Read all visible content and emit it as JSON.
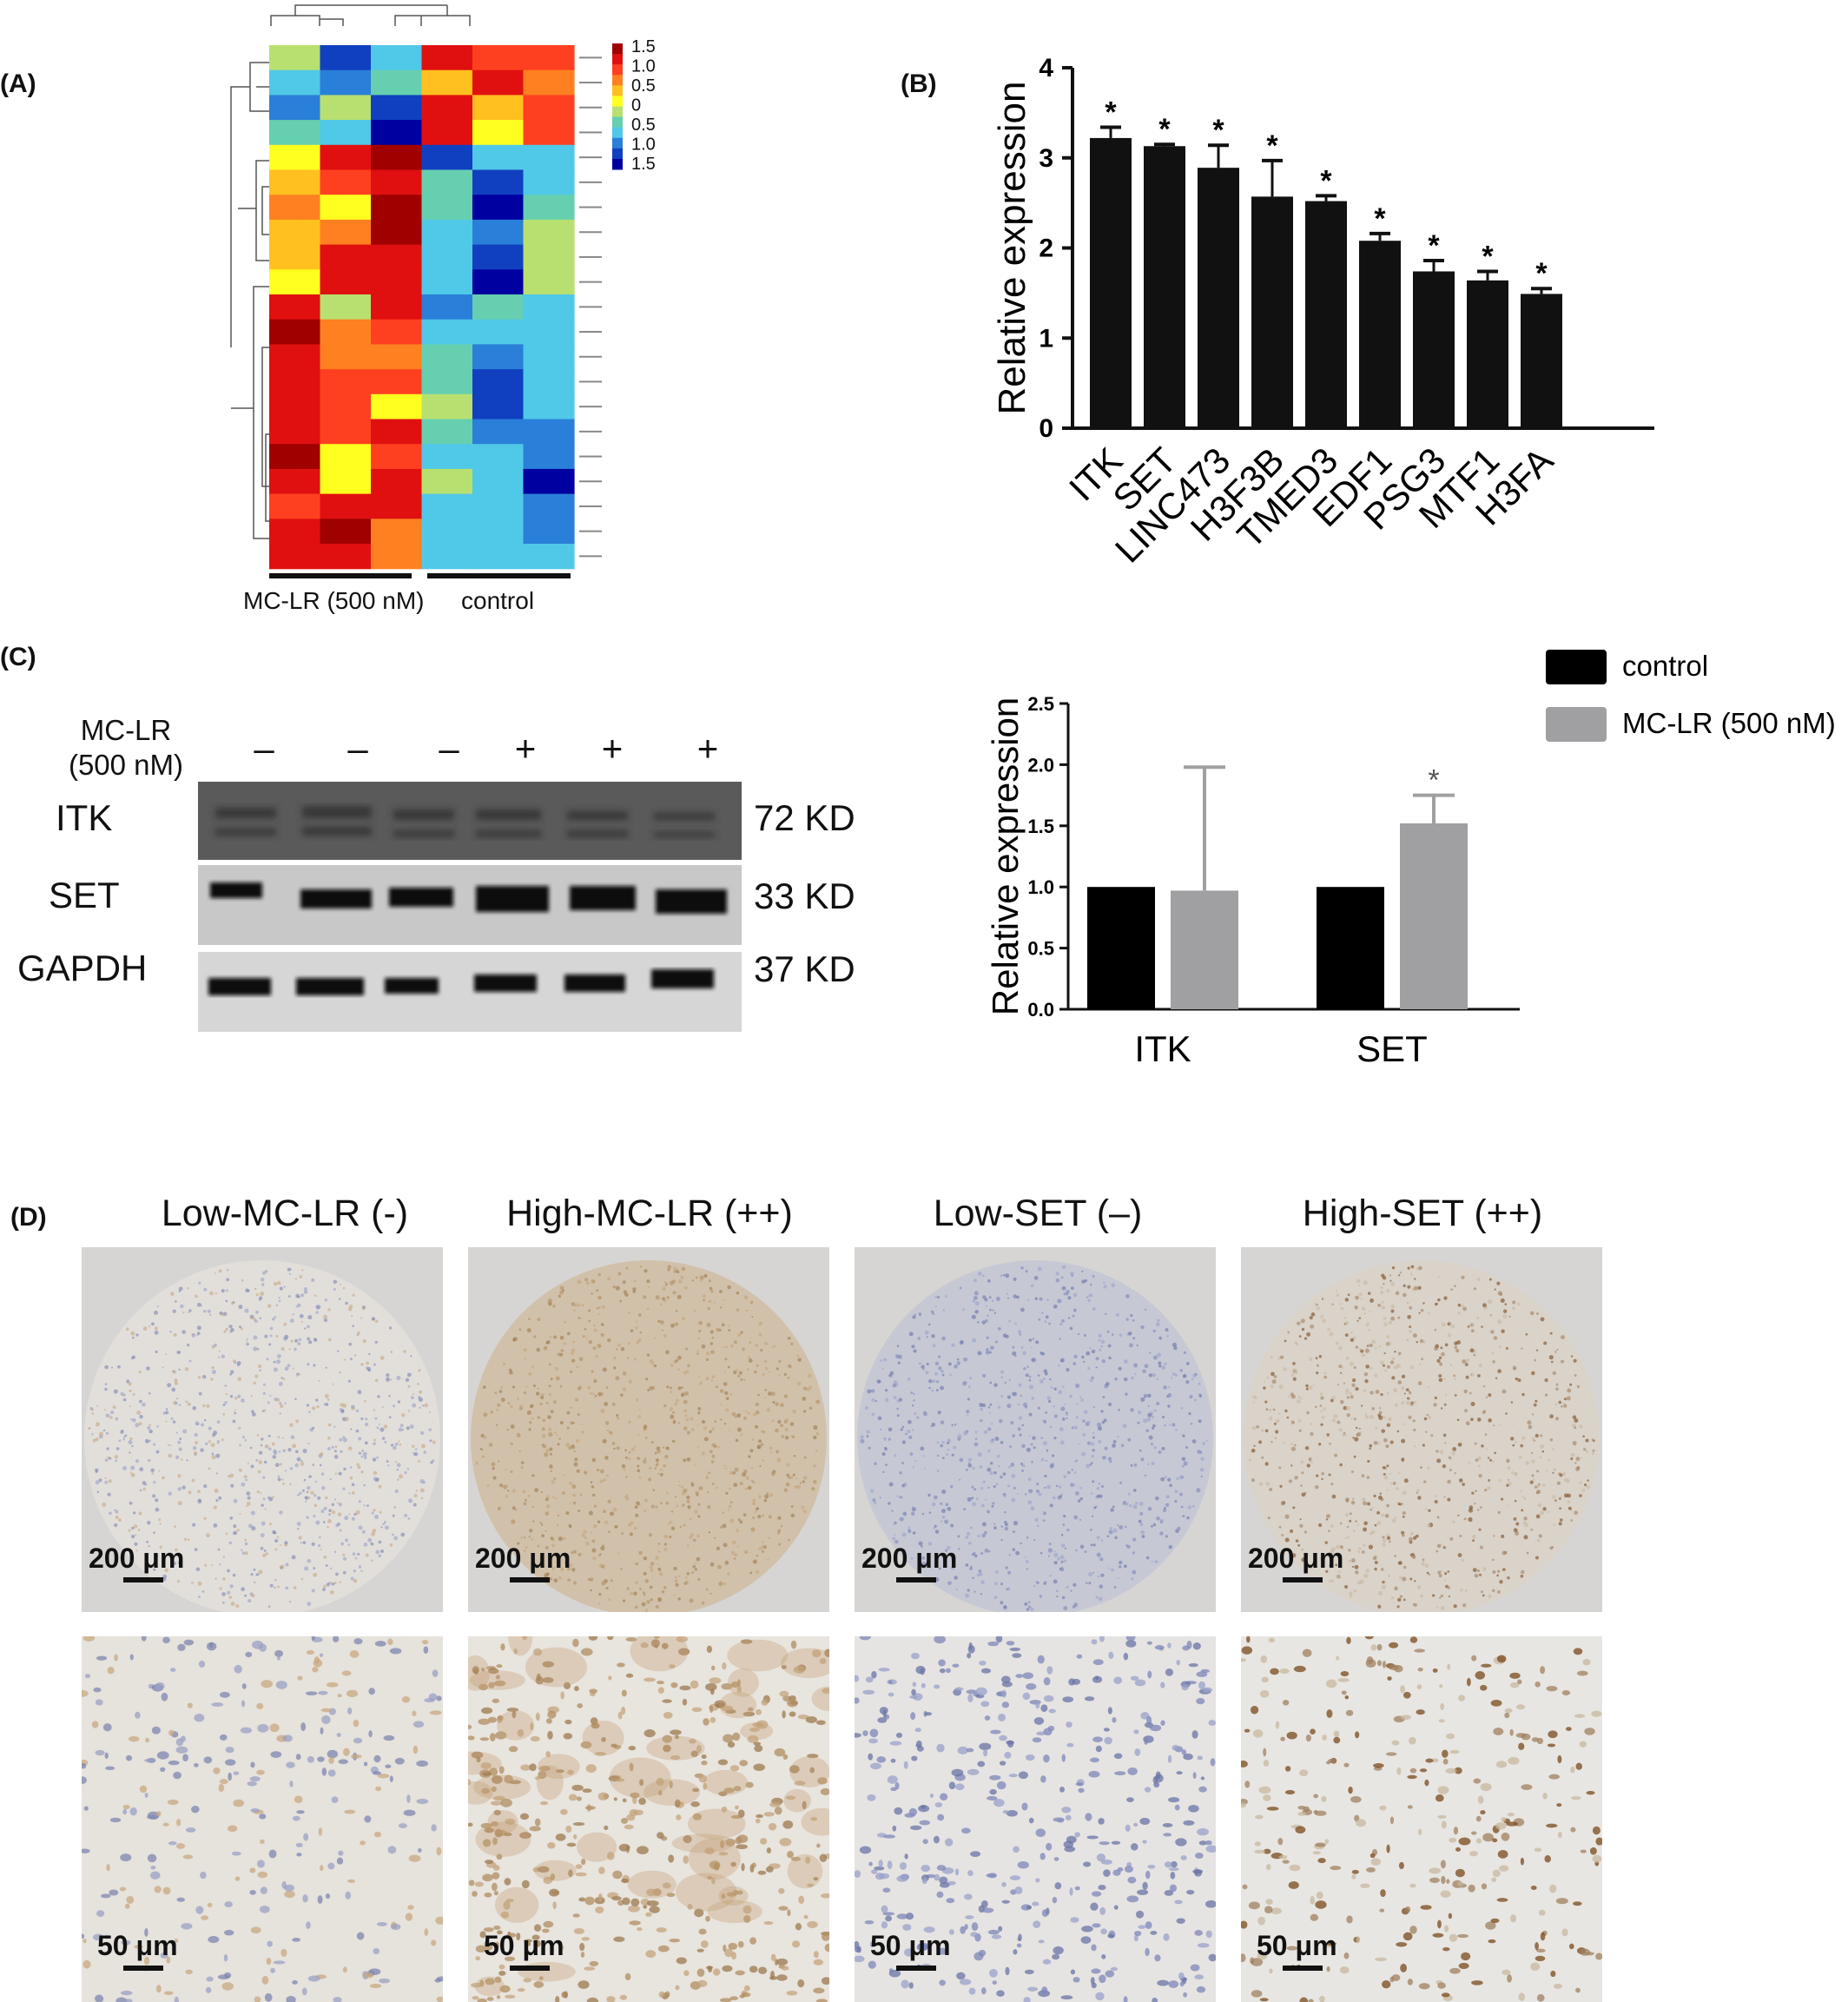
{
  "panels": {
    "a_label": "(A)",
    "b_label": "(B)",
    "c_label": "(C)",
    "d_label": "(D)"
  },
  "heatmap": {
    "group_labels": [
      "MC-LR (500 nM)",
      "control"
    ],
    "scale_ticks": [
      "1.5",
      "1.0",
      "0.5",
      "0",
      "0.5",
      "1.0",
      "1.5"
    ],
    "colors": [
      "#0000a0",
      "#1040c0",
      "#2a7fd8",
      "#50c8e8",
      "#66cfb0",
      "#b8e070",
      "#ffff20",
      "#ffc020",
      "#ff8020",
      "#ff4020",
      "#e01010",
      "#a00000"
    ],
    "rows": [
      [
        5,
        1,
        3,
        10,
        9,
        9
      ],
      [
        3,
        2,
        4,
        7,
        10,
        8
      ],
      [
        2,
        5,
        1,
        10,
        7,
        9
      ],
      [
        4,
        3,
        0,
        10,
        6,
        9
      ],
      [
        6,
        10,
        11,
        1,
        3,
        3
      ],
      [
        7,
        9,
        10,
        4,
        1,
        3
      ],
      [
        8,
        6,
        11,
        4,
        0,
        4
      ],
      [
        7,
        8,
        11,
        3,
        2,
        5
      ],
      [
        7,
        10,
        10,
        3,
        1,
        5
      ],
      [
        6,
        10,
        10,
        3,
        0,
        5
      ],
      [
        10,
        5,
        10,
        2,
        4,
        3
      ],
      [
        11,
        8,
        9,
        3,
        3,
        3
      ],
      [
        10,
        8,
        8,
        4,
        2,
        3
      ],
      [
        10,
        9,
        9,
        4,
        1,
        3
      ],
      [
        10,
        9,
        6,
        5,
        1,
        3
      ],
      [
        10,
        9,
        10,
        4,
        2,
        2
      ],
      [
        11,
        6,
        9,
        3,
        3,
        2
      ],
      [
        10,
        6,
        10,
        5,
        3,
        0
      ],
      [
        9,
        10,
        10,
        3,
        3,
        2
      ],
      [
        10,
        11,
        8,
        3,
        3,
        2
      ],
      [
        10,
        10,
        8,
        3,
        3,
        3
      ]
    ]
  },
  "blot": {
    "treatment_line1": "MC-LR",
    "treatment_line2": "(500 nM)",
    "signs": [
      "–",
      "–",
      "–",
      "+",
      "+",
      "+"
    ],
    "rows": [
      {
        "name": "ITK",
        "kd": "72 KD"
      },
      {
        "name": "SET",
        "kd": "33 KD"
      },
      {
        "name": "GAPDH",
        "kd": "37 KD"
      }
    ]
  },
  "tissue": {
    "titles": [
      "Low-MC-LR (-)",
      "High-MC-LR (++)",
      "Low-SET (–)",
      "High-SET (++)"
    ],
    "scale_top": "200 μm",
    "scale_bottom": "50 μm"
  },
  "chart_data": [
    {
      "type": "bar",
      "panel": "B",
      "categories": [
        "ITK",
        "SET",
        "LINC473",
        "H3F3B",
        "TMED3",
        "EDF1",
        "PSG3",
        "MTF1",
        "H3FA"
      ],
      "values": [
        3.22,
        3.13,
        2.89,
        2.57,
        2.52,
        2.08,
        1.74,
        1.64,
        1.49
      ],
      "errors": [
        0.12,
        0.02,
        0.25,
        0.4,
        0.06,
        0.08,
        0.12,
        0.1,
        0.06
      ],
      "annotations": [
        "*",
        "*",
        "*",
        "*",
        "*",
        "*",
        "*",
        "*",
        "*"
      ],
      "ylabel": "Relative expression",
      "ylim": [
        0,
        4
      ],
      "yticks": [
        "0",
        "1",
        "2",
        "3",
        "4"
      ],
      "bar_color": "#111111"
    },
    {
      "type": "bar",
      "panel": "C",
      "categories": [
        "ITK",
        "SET"
      ],
      "series": [
        {
          "name": "control",
          "values": [
            1.0,
            1.0
          ],
          "errors": [
            0,
            0
          ],
          "color": "#000000"
        },
        {
          "name": "MC-LR (500 nM)",
          "values": [
            0.97,
            1.52
          ],
          "errors": [
            1.01,
            0.23
          ],
          "color": "#a0a0a3"
        }
      ],
      "annotations": [
        "",
        "*"
      ],
      "ylabel": "Relative expression",
      "ylim": [
        0,
        2.5
      ],
      "yticks": [
        "0.0",
        "0.5",
        "1.0",
        "1.5",
        "2.0",
        "2.5"
      ],
      "legend": "top-right"
    }
  ]
}
